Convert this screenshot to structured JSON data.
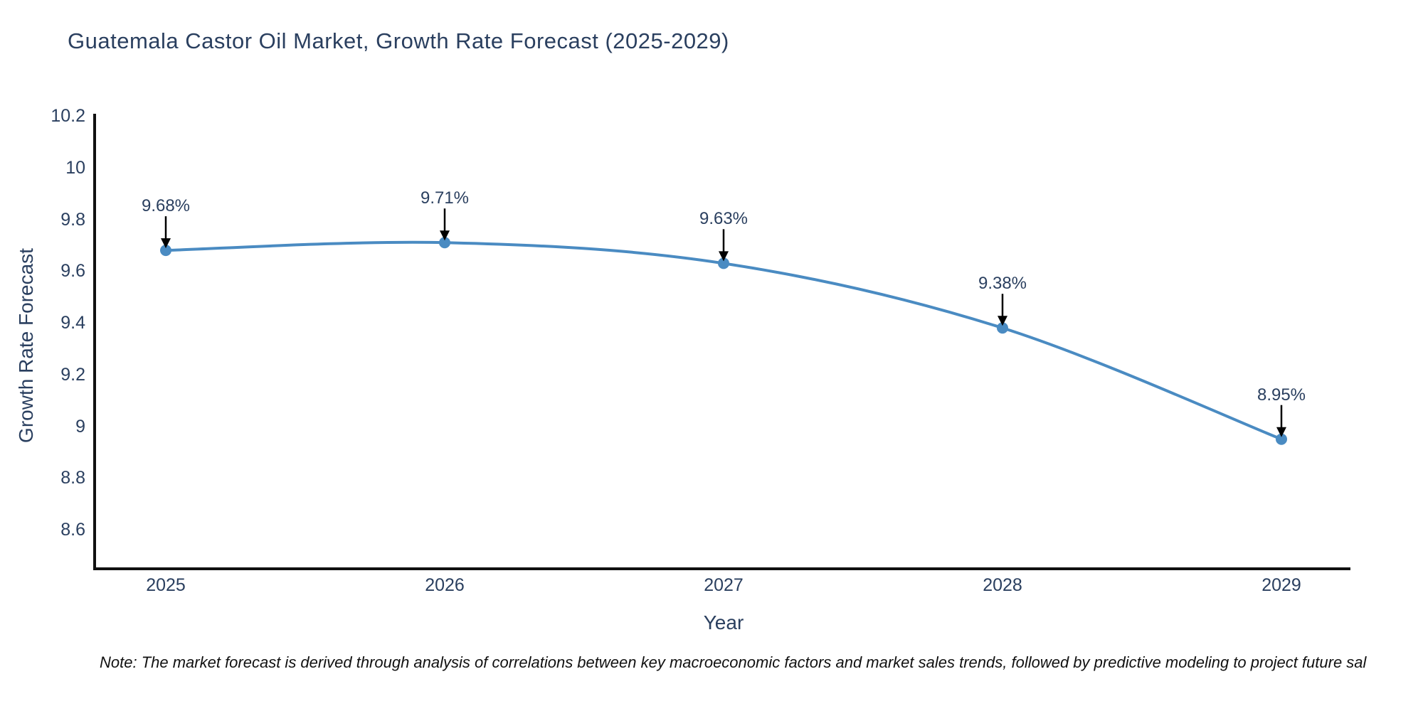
{
  "chart_data": {
    "type": "line",
    "title": "Guatemala Castor Oil Market, Growth Rate Forecast (2025-2029)",
    "xlabel": "Year",
    "ylabel": "Growth Rate Forecast",
    "x": [
      2025,
      2026,
      2027,
      2028,
      2029
    ],
    "series": [
      {
        "name": "Growth Rate Forecast",
        "values": [
          9.68,
          9.71,
          9.63,
          9.38,
          8.95
        ]
      }
    ],
    "point_labels": [
      "9.68%",
      "9.71%",
      "9.63%",
      "9.38%",
      "8.95%"
    ],
    "x_ticks": [
      "2025",
      "2026",
      "2027",
      "2028",
      "2029"
    ],
    "y_ticks": [
      "10.2",
      "10",
      "9.8",
      "9.6",
      "9.4",
      "9.2",
      "9",
      "8.8",
      "8.6"
    ],
    "ylim": [
      8.45,
      10.2
    ],
    "grid": false,
    "legend_position": "none",
    "line_shape": "spline",
    "colors": {
      "line": "#4a8bc2",
      "marker": "#4a8bc2",
      "arrow": "#000000",
      "axis": "#111111",
      "text": "#2a3f5f"
    },
    "note": "Note: The market forecast is derived through analysis of correlations between key macroeconomic factors and market sales trends, followed by predictive modeling to project future sal"
  }
}
